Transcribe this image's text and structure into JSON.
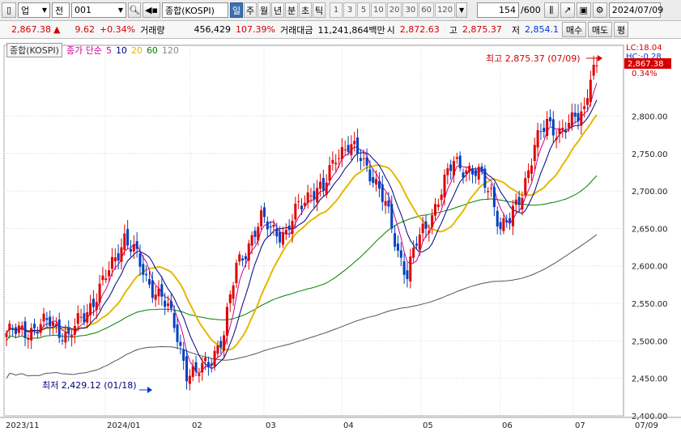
{
  "toolbar": {
    "market": "업",
    "sector": "전",
    "code": "001",
    "name": "종합(KOSPI)",
    "periods": [
      "일",
      "주",
      "월",
      "년",
      "분",
      "초",
      "틱"
    ],
    "active_period": "일",
    "intervals": [
      "1",
      "3",
      "5",
      "10",
      "20",
      "30",
      "60",
      "120"
    ],
    "count": "154",
    "total": "/600",
    "date": "2024/07/09"
  },
  "quote": {
    "price": "2,867.38",
    "arrow": "▲",
    "change": "9.62",
    "change_pct": "+0.34%",
    "volume_label": "거래량",
    "volume": "456,429",
    "volume_pct": "107.39%",
    "amount_label": "거래대금",
    "amount": "11,241,864백만",
    "open_label": "시",
    "open": "2,872.63",
    "high_label": "고",
    "high": "2,875.37",
    "low_label": "저",
    "low": "2,854.1",
    "buy_label": "매수",
    "sell_label": "매도",
    "eval_label": "평"
  },
  "legend": {
    "index_tag": "종합(KOSPI)",
    "ma_label": "종가 단순",
    "ma_periods": [
      "5",
      "10",
      "20",
      "60",
      "120"
    ]
  },
  "chart_data": {
    "type": "candlestick",
    "y_range": [
      2400,
      2875
    ],
    "y_ticks": [
      "2,800.00",
      "2,750.00",
      "2,700.00",
      "2,650.00",
      "2,600.00",
      "2,550.00",
      "2,500.00",
      "2,450.00",
      "2,400.00"
    ],
    "x_labels": [
      "2023/11",
      "2024/01",
      "02",
      "03",
      "04",
      "05",
      "06",
      "07",
      "07/09"
    ],
    "max_annotation": "최고 2,875.37 (07/09)",
    "min_annotation": "최저 2,429.12 (01/18)",
    "last_price": "2,867.38",
    "last_pct": "0.34%",
    "lc_label": "LC:18.04",
    "hc_label": "HC:-0.28",
    "ma_colors": {
      "ma5": "#cc0099",
      "ma10": "#000080",
      "ma20": "#e6b800",
      "ma60": "#008000",
      "ma120": "#555555"
    },
    "candle_up": "#e00000",
    "candle_down": "#0040c0"
  }
}
